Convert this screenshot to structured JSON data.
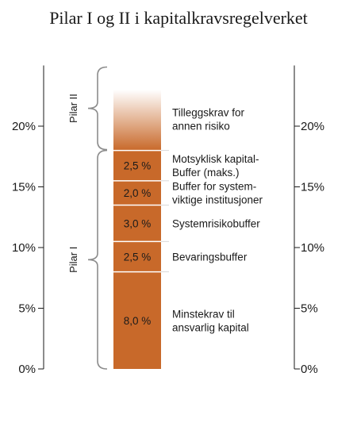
{
  "chart_data": {
    "type": "bar",
    "title": "Pilar I og II i kapitalkravsregelverket",
    "ylim": [
      0,
      25
    ],
    "yticks": [
      0,
      5,
      10,
      15,
      20
    ],
    "ytick_labels": [
      "0%",
      "5%",
      "10%",
      "15%",
      "20%"
    ],
    "grid": false,
    "segments": [
      {
        "value": 8.0,
        "label": "8,0 %",
        "description": [
          "Minstekrav til",
          "ansvarlig kapital"
        ]
      },
      {
        "value": 2.5,
        "label": "2,5 %",
        "description": [
          "Bevaringsbuffer"
        ]
      },
      {
        "value": 3.0,
        "label": "3,0 %",
        "description": [
          "Systemrisikobuffer"
        ]
      },
      {
        "value": 2.0,
        "label": "2,0 %",
        "description": [
          "Buffer for system-",
          "viktige institusjoner"
        ]
      },
      {
        "value": 2.5,
        "label": "2,5 %",
        "description": [
          "Motsyklisk kapital-",
          "Buffer (maks.)"
        ]
      }
    ],
    "pillar2": {
      "approx_top": 23,
      "description": [
        "Tilleggskrav for",
        "annen risiko"
      ]
    },
    "pillars": [
      {
        "label": "Pilar I",
        "from": 0,
        "to": 18
      },
      {
        "label": "Pilar II",
        "from": 18,
        "to": 25
      }
    ],
    "colors": {
      "bar": "#c8692a",
      "separator": "#ffffff",
      "axis": "#1a1a1a",
      "brace": "#8c8c8c"
    }
  }
}
